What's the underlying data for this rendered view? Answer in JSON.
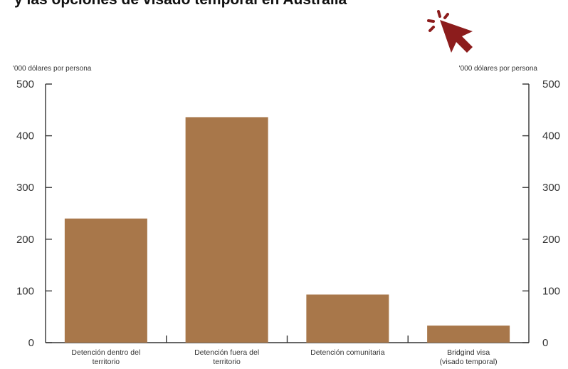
{
  "title": "y las opciones de visado temporal en Australia",
  "cursor_icon": "pointer-click-icon",
  "colors": {
    "bar": "#a8774a",
    "cursor": "#8c1c1c",
    "axis": "#333333"
  },
  "chart_data": {
    "type": "bar",
    "categories": [
      [
        "Detención dentro del",
        "territorio"
      ],
      [
        "Detención fuera del",
        "territorio"
      ],
      [
        "Detención comunitaria"
      ],
      [
        "Bridgind visa",
        "(visado temporal)"
      ]
    ],
    "values": [
      240,
      436,
      93,
      33
    ],
    "ylabel_left": "'000 dólares por persona",
    "ylabel_right": "'000 dólares por persona",
    "ylim": [
      0,
      500
    ],
    "yticks": [
      0,
      100,
      200,
      300,
      400,
      500
    ],
    "grid": false,
    "legend": "none"
  }
}
